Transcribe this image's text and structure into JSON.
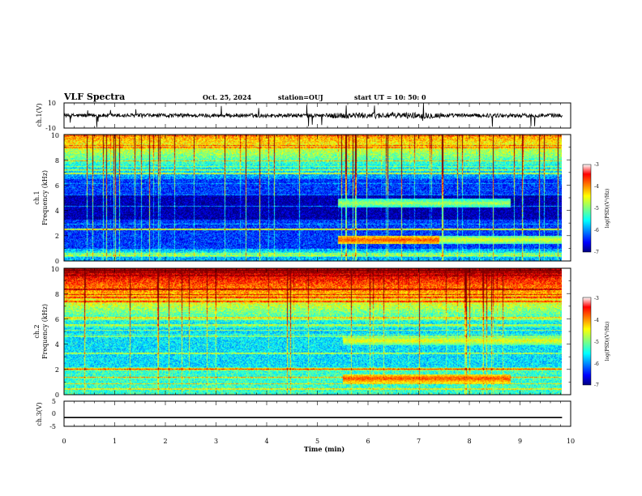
{
  "header": {
    "title": "VLF Spectra",
    "date": "Oct. 25, 2024",
    "station": "station=OUJ",
    "start": "start UT =  10: 50: 0"
  },
  "colors": {
    "wave": "#000000",
    "frame": "#000000",
    "colormap": [
      "#00007f",
      "#0000ff",
      "#007fff",
      "#00ffff",
      "#7fff7f",
      "#ffff00",
      "#ff7f00",
      "#ff0000",
      "#7f0000"
    ]
  },
  "chart_data": [
    {
      "type": "line",
      "panel": "ch1-waveform",
      "ylabel": "ch.1(V)",
      "ylim": [
        -10,
        10
      ],
      "y_ticks": [
        "10",
        "-10"
      ],
      "xlim": [
        0,
        10
      ],
      "data_end_min": 9.83,
      "description_values": {
        "mean_amplitude": 0,
        "typical_peak": 2,
        "max_spike": 10
      }
    },
    {
      "type": "heatmap",
      "panel": "ch1-spectrogram",
      "ylabel_top": "ch.1",
      "ylabel": "Frequency (kHz)",
      "xlabel": "",
      "xlim": [
        0,
        10
      ],
      "ylim": [
        0,
        10
      ],
      "y_ticks": [
        "0",
        "2",
        "4",
        "6",
        "8",
        "10"
      ],
      "colorbar": {
        "label": "log(PSD)(V²/Hz)",
        "range": [
          -7,
          -3
        ],
        "ticks": [
          "-3",
          "-4",
          "-5",
          "-6",
          "-7"
        ]
      },
      "background_level_log_psd": -6.3,
      "enhancement_bands": [
        {
          "t_start_min": 5.4,
          "t_end_min": 7.4,
          "f_khz": 1.7,
          "level": -3.8
        },
        {
          "t_start_min": 7.4,
          "t_end_min": 9.83,
          "f_khz": 1.7,
          "level": -4.6
        },
        {
          "t_start_min": 5.4,
          "t_end_min": 8.8,
          "f_khz": 4.6,
          "level": -4.8
        }
      ]
    },
    {
      "type": "heatmap",
      "panel": "ch2-spectrogram",
      "ylabel_top": "ch.2",
      "ylabel": "Frequency (kHz)",
      "xlabel": "",
      "xlim": [
        0,
        10
      ],
      "ylim": [
        0,
        10
      ],
      "y_ticks": [
        "0",
        "2",
        "4",
        "6",
        "8",
        "10"
      ],
      "colorbar": {
        "label": "log(PSD)(V²/Hz)",
        "range": [
          -7,
          -3
        ],
        "ticks": [
          "-3",
          "-4",
          "-5",
          "-6",
          "-7"
        ]
      },
      "background_level_log_psd": -5.6,
      "enhancement_bands": [
        {
          "t_start_min": 5.5,
          "t_end_min": 8.8,
          "f_khz": 1.3,
          "level": -3.8
        },
        {
          "t_start_min": 5.5,
          "t_end_min": 9.83,
          "f_khz": 4.3,
          "level": -4.5
        }
      ]
    },
    {
      "type": "line",
      "panel": "ch3-waveform",
      "ylabel": "ch.3(V)",
      "xlabel": "Time (min)",
      "ylim": [
        -5,
        5
      ],
      "y_ticks": [
        "5",
        "0",
        "-5"
      ],
      "xlim": [
        0,
        10
      ],
      "x_ticks": [
        "0",
        "1",
        "2",
        "3",
        "4",
        "5",
        "6",
        "7",
        "8",
        "9",
        "10"
      ],
      "constant_value": -1.5,
      "data_end_min": 9.83
    }
  ]
}
